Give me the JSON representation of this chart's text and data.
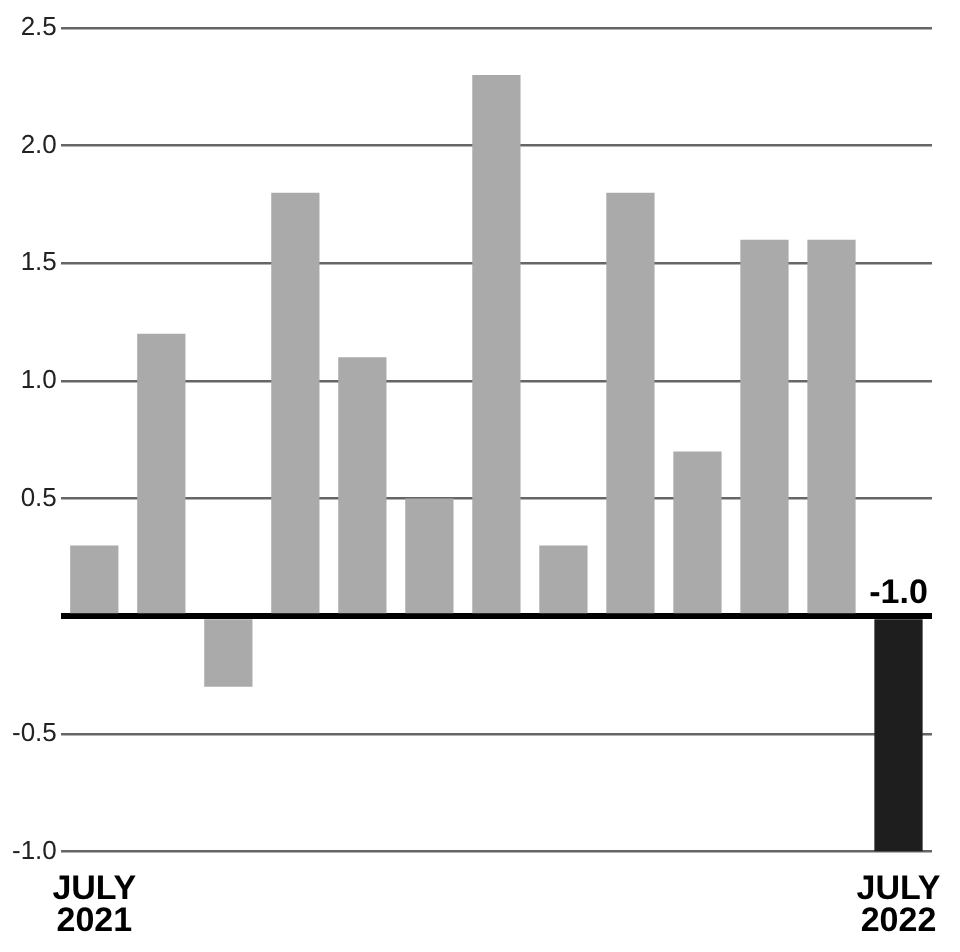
{
  "chart_data": {
    "type": "bar",
    "categories": [
      "JULY 2021",
      null,
      null,
      null,
      null,
      null,
      null,
      null,
      null,
      null,
      null,
      null,
      "JULY 2022"
    ],
    "values": [
      0.3,
      1.2,
      -0.3,
      1.8,
      1.1,
      0.5,
      2.3,
      0.3,
      1.8,
      0.7,
      1.6,
      1.6,
      -1.0
    ],
    "colors": [
      "#aaaaaa",
      "#aaaaaa",
      "#aaaaaa",
      "#aaaaaa",
      "#aaaaaa",
      "#aaaaaa",
      "#aaaaaa",
      "#aaaaaa",
      "#aaaaaa",
      "#aaaaaa",
      "#aaaaaa",
      "#aaaaaa",
      "#1e1e1e"
    ],
    "value_labels": [
      null,
      null,
      null,
      null,
      null,
      null,
      null,
      null,
      null,
      null,
      null,
      null,
      "-1.0"
    ],
    "ylim": [
      -1.0,
      2.5
    ],
    "yticks": [
      {
        "value": -1.0,
        "label": "-1.0"
      },
      {
        "value": -0.5,
        "label": "-0.5"
      },
      {
        "value": 0,
        "label": null
      },
      {
        "value": 0.5,
        "label": "0.5"
      },
      {
        "value": 1.0,
        "label": "1.0"
      },
      {
        "value": 1.5,
        "label": "1.5"
      },
      {
        "value": 2.0,
        "label": "2.0"
      },
      {
        "value": 2.5,
        "label": "2.5"
      }
    ],
    "grid": "y",
    "legend": false
  }
}
